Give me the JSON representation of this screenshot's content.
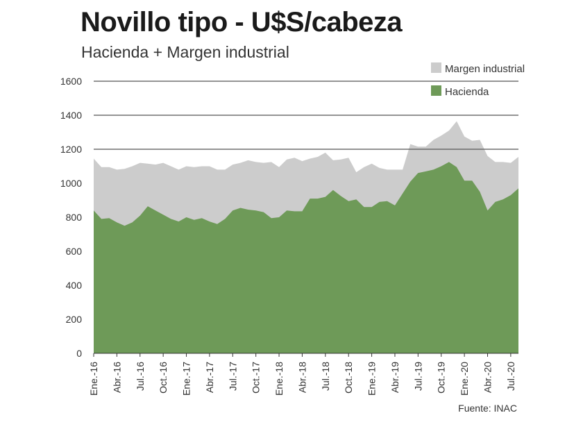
{
  "title": "Novillo tipo - U$S/cabeza",
  "subtitle": "Hacienda + Margen industrial",
  "source": "Fuente: INAC",
  "chart_data": {
    "type": "area",
    "stacked": true,
    "title": "Novillo tipo - U$S/cabeza",
    "subtitle": "Hacienda + Margen industrial",
    "ylim": [
      0,
      1600
    ],
    "yticks": [
      0,
      200,
      400,
      600,
      800,
      1000,
      1200,
      1400,
      1600
    ],
    "grid": "horizontal lines at 1200, 1400, 1600",
    "legend_position": "top-right",
    "x_tick_labels": [
      "Ene.-16",
      "Abr.-16",
      "Jul.-16",
      "Oct.-16",
      "Ene.-17",
      "Abr.-17",
      "Jul.-17",
      "Oct.-17",
      "Ene.-18",
      "Abr.-18",
      "Jul.-18",
      "Oct.-18",
      "Ene.-19",
      "Abr.-19",
      "Jul.-19",
      "Oct.-19",
      "Ene.-20",
      "Abr.-20",
      "Jul.-20"
    ],
    "x_tick_index": [
      0,
      3,
      6,
      9,
      12,
      15,
      18,
      21,
      24,
      27,
      30,
      33,
      36,
      39,
      42,
      45,
      48,
      51,
      54
    ],
    "months": [
      "Ene.-16",
      "Feb.-16",
      "Mar.-16",
      "Abr.-16",
      "May.-16",
      "Jun.-16",
      "Jul.-16",
      "Ago.-16",
      "Set.-16",
      "Oct.-16",
      "Nov.-16",
      "Dic.-16",
      "Ene.-17",
      "Feb.-17",
      "Mar.-17",
      "Abr.-17",
      "May.-17",
      "Jun.-17",
      "Jul.-17",
      "Ago.-17",
      "Set.-17",
      "Oct.-17",
      "Nov.-17",
      "Dic.-17",
      "Ene.-18",
      "Feb.-18",
      "Mar.-18",
      "Abr.-18",
      "May.-18",
      "Jun.-18",
      "Jul.-18",
      "Ago.-18",
      "Set.-18",
      "Oct.-18",
      "Nov.-18",
      "Dic.-18",
      "Ene.-19",
      "Feb.-19",
      "Mar.-19",
      "Abr.-19",
      "May.-19",
      "Jun.-19",
      "Jul.-19",
      "Ago.-19",
      "Set.-19",
      "Oct.-19",
      "Nov.-19",
      "Dic.-19",
      "Ene.-20",
      "Feb.-20",
      "Mar.-20",
      "Abr.-20",
      "May.-20",
      "Jun.-20",
      "Jul.-20",
      "Ago.-20"
    ],
    "series": [
      {
        "name": "Hacienda",
        "color": "#6e9a58",
        "values": [
          840,
          790,
          795,
          770,
          750,
          770,
          810,
          865,
          840,
          815,
          790,
          775,
          800,
          785,
          795,
          775,
          760,
          790,
          840,
          855,
          845,
          840,
          830,
          795,
          800,
          840,
          835,
          835,
          910,
          910,
          920,
          960,
          925,
          895,
          905,
          860,
          860,
          890,
          895,
          870,
          940,
          1010,
          1060,
          1070,
          1080,
          1100,
          1125,
          1095,
          1015,
          1015,
          950,
          840,
          890,
          905,
          930,
          970
        ]
      },
      {
        "name": "Margen industrial",
        "color": "#cccccc",
        "values": [
          305,
          305,
          300,
          310,
          335,
          330,
          310,
          250,
          270,
          305,
          310,
          305,
          300,
          310,
          305,
          325,
          320,
          290,
          270,
          265,
          290,
          285,
          290,
          330,
          295,
          300,
          315,
          295,
          235,
          245,
          260,
          175,
          215,
          255,
          160,
          235,
          255,
          200,
          185,
          210,
          140,
          220,
          155,
          145,
          175,
          180,
          185,
          270,
          260,
          235,
          305,
          320,
          235,
          220,
          190,
          185
        ]
      }
    ]
  }
}
